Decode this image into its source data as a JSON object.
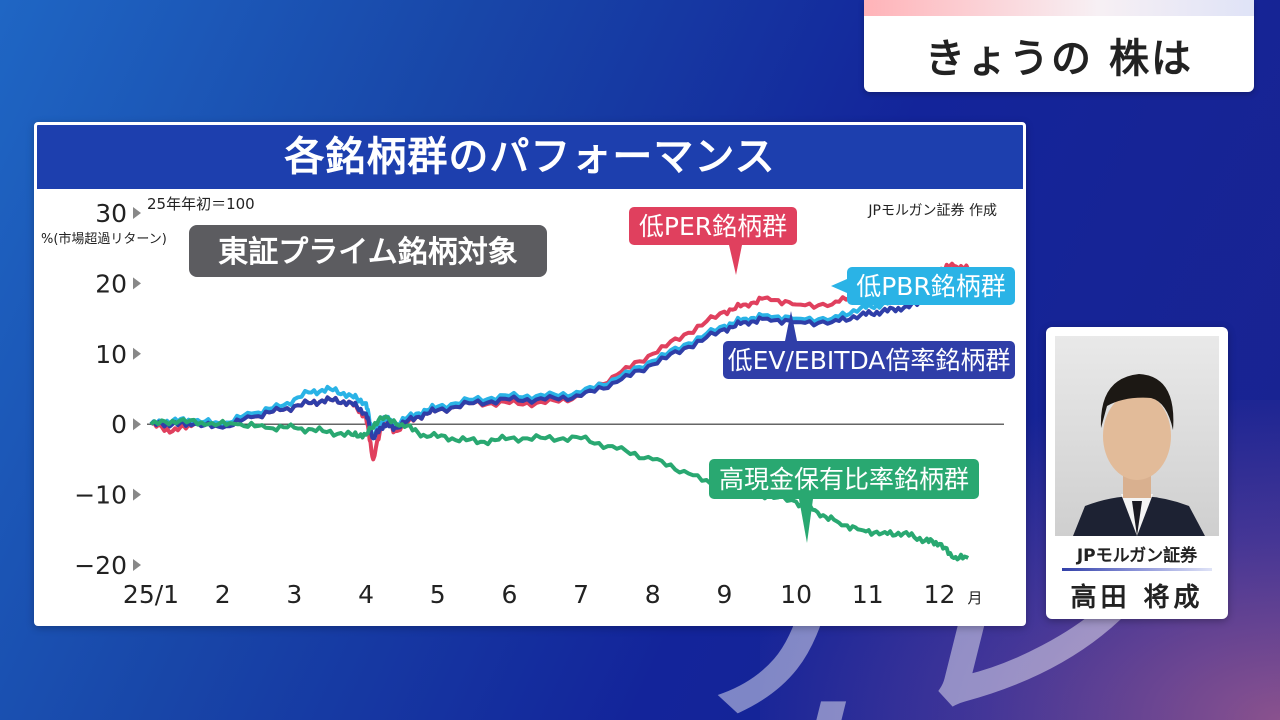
{
  "header": {
    "title": "きょうの 株は"
  },
  "chart_panel": {
    "title": "各銘柄群のパフォーマンス"
  },
  "person": {
    "company": "JPモルガン証券",
    "name": "高田 将成"
  },
  "watermark": {
    "text": "テレ東"
  },
  "chart_data": {
    "type": "line",
    "note_base": "25年年初＝100",
    "ylabel": "%(市場超過リターン)",
    "source": "JPモルガン証券 作成",
    "subset_label": "東証プライム銘柄対象",
    "x_ticks": [
      "25/1",
      "2",
      "3",
      "4",
      "5",
      "6",
      "7",
      "8",
      "9",
      "10",
      "11",
      "12"
    ],
    "x_unit": "月",
    "xlim": [
      1,
      12.9
    ],
    "y_ticks": [
      "30",
      "20",
      "10",
      "0",
      "−10",
      "−20"
    ],
    "ylim": [
      -20,
      30
    ],
    "colors": {
      "per": "#e0405e",
      "pbr": "#2ab3e6",
      "ev": "#2f3ea8",
      "cash": "#29a871"
    },
    "series": [
      {
        "key": "per",
        "name": "低PER銘柄群",
        "x": [
          1.0,
          1.3,
          1.6,
          2.0,
          2.4,
          2.8,
          3.2,
          3.5,
          3.8,
          4.0,
          4.1,
          4.25,
          4.4,
          4.7,
          5.0,
          5.5,
          6.0,
          6.5,
          7.0,
          7.5,
          8.0,
          8.5,
          9.0,
          9.3,
          9.6,
          10.0,
          10.5,
          10.9,
          11.2,
          11.5,
          11.8,
          12.0,
          12.2,
          12.4
        ],
        "y": [
          0,
          -1,
          0,
          0,
          1,
          2,
          3,
          3.5,
          3,
          1,
          -5,
          1,
          -1,
          1,
          2,
          3,
          3,
          3,
          4,
          7,
          10,
          13,
          16,
          17,
          18,
          17,
          17,
          19,
          18,
          20,
          21,
          22,
          22.5,
          22
        ]
      },
      {
        "key": "pbr",
        "name": "低PBR銘柄群",
        "x": [
          1.0,
          1.3,
          1.6,
          2.0,
          2.4,
          2.8,
          3.2,
          3.5,
          3.8,
          4.0,
          4.1,
          4.25,
          4.4,
          4.7,
          5.0,
          5.5,
          6.0,
          6.5,
          7.0,
          7.5,
          8.0,
          8.5,
          9.0,
          9.3,
          9.6,
          10.0,
          10.5,
          10.9,
          11.2,
          11.5,
          11.8,
          12.0,
          12.2,
          12.4
        ],
        "y": [
          0,
          0.5,
          0.5,
          0,
          1.5,
          2.5,
          4.5,
          5,
          4,
          3,
          -2,
          1,
          0,
          1.5,
          2.5,
          3.5,
          4,
          4,
          4.5,
          6.5,
          9,
          11.5,
          14,
          15,
          15.5,
          15,
          15,
          16.5,
          17,
          18,
          19,
          19.5,
          20,
          20
        ]
      },
      {
        "key": "ev",
        "name": "低EV/EBITDA倍率銘柄群",
        "x": [
          1.0,
          1.3,
          1.6,
          2.0,
          2.4,
          2.8,
          3.2,
          3.5,
          3.8,
          4.0,
          4.1,
          4.25,
          4.4,
          4.7,
          5.0,
          5.5,
          6.0,
          6.5,
          7.0,
          7.5,
          8.0,
          8.5,
          9.0,
          9.3,
          9.6,
          10.0,
          10.5,
          10.9,
          11.2,
          11.5,
          11.8,
          12.0,
          12.2,
          12.4
        ],
        "y": [
          0,
          0,
          0,
          -0.5,
          1,
          2,
          3,
          3.5,
          3,
          1.5,
          -2,
          0,
          -0.5,
          1,
          2,
          3,
          3.5,
          3.5,
          4,
          6,
          8.5,
          11,
          13.5,
          14.5,
          15,
          14.5,
          14.5,
          15.5,
          16,
          16.5,
          17.5,
          18,
          18,
          17.5
        ]
      },
      {
        "key": "cash",
        "name": "高現金保有比率銘柄群",
        "x": [
          1.0,
          1.4,
          1.8,
          2.2,
          2.6,
          3.0,
          3.4,
          3.8,
          4.0,
          4.2,
          4.5,
          4.8,
          5.2,
          5.6,
          6.0,
          6.5,
          7.0,
          7.5,
          8.0,
          8.5,
          9.0,
          9.5,
          10.0,
          10.3,
          10.6,
          10.9,
          11.2,
          11.5,
          11.8,
          12.0,
          12.2,
          12.4
        ],
        "y": [
          0,
          0.5,
          0,
          0,
          -0.5,
          -0.5,
          -1,
          -1.5,
          -1.5,
          1,
          0,
          -1.5,
          -2,
          -2.5,
          -2,
          -2,
          -2,
          -3.5,
          -5,
          -7,
          -9.5,
          -10,
          -11,
          -12.5,
          -14,
          -15,
          -15.5,
          -15.5,
          -16.5,
          -17,
          -19,
          -19
        ]
      }
    ],
    "labels": [
      {
        "key": "per",
        "text": "低PER銘柄群"
      },
      {
        "key": "pbr",
        "text": "低PBR銘柄群"
      },
      {
        "key": "ev",
        "text": "低EV/EBITDA倍率銘柄群"
      },
      {
        "key": "cash",
        "text": "高現金保有比率銘柄群"
      }
    ],
    "grid": false,
    "zero_line": true
  }
}
